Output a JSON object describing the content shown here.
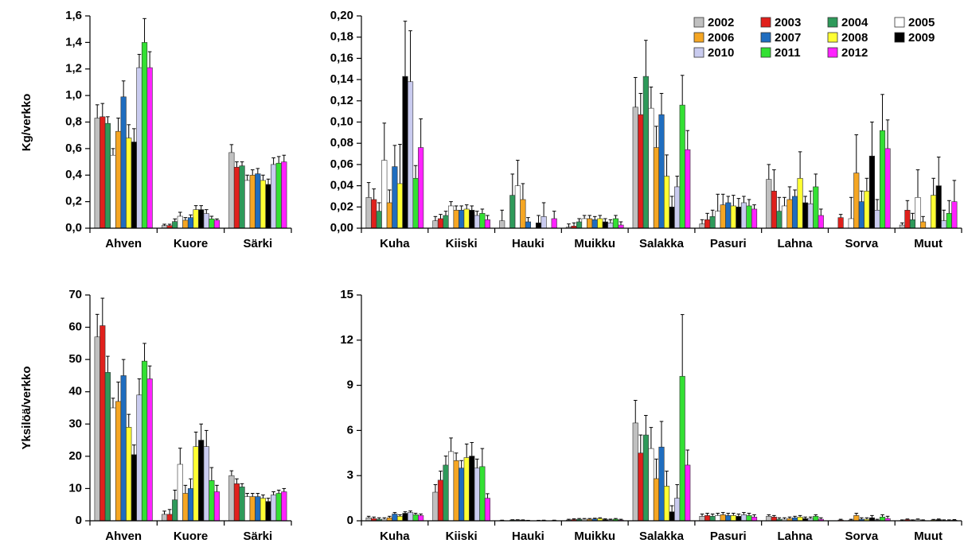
{
  "chart_data": [
    {
      "type": "bar",
      "ylabel": "Kg/verkko",
      "categories": [
        "Ahven",
        "Kuore",
        "Särki"
      ],
      "ylim": [
        0,
        1.6
      ],
      "yticks": [
        {
          "value": 0,
          "label": "0,0"
        },
        {
          "value": 0.2,
          "label": "0,2"
        },
        {
          "value": 0.4,
          "label": "0,4"
        },
        {
          "value": 0.6,
          "label": "0,6"
        },
        {
          "value": 0.8,
          "label": "0,8"
        },
        {
          "value": 1.0,
          "label": "1,0"
        },
        {
          "value": 1.2,
          "label": "1,2"
        },
        {
          "value": 1.4,
          "label": "1,4"
        },
        {
          "value": 1.6,
          "label": "1,6"
        }
      ],
      "series": [
        {
          "name": "2002",
          "color": "#c0c0c0",
          "values": [
            0.83,
            0.02,
            0.57
          ],
          "errors": [
            0.1,
            0.01,
            0.06
          ]
        },
        {
          "name": "2003",
          "color": "#e0201c",
          "values": [
            0.84,
            0.02,
            0.46
          ],
          "errors": [
            0.1,
            0.01,
            0.04
          ]
        },
        {
          "name": "2004",
          "color": "#2e9a5a",
          "values": [
            0.79,
            0.05,
            0.47
          ],
          "errors": [
            0.05,
            0.02,
            0.03
          ]
        },
        {
          "name": "2005",
          "color": "#ffffff",
          "values": [
            0.55,
            0.09,
            0.36
          ],
          "errors": [
            0.05,
            0.03,
            0.04
          ]
        },
        {
          "name": "2006",
          "color": "#f5a623",
          "values": [
            0.73,
            0.06,
            0.4
          ],
          "errors": [
            0.1,
            0.02,
            0.04
          ]
        },
        {
          "name": "2007",
          "color": "#1f6dbf",
          "values": [
            0.99,
            0.08,
            0.41
          ],
          "errors": [
            0.12,
            0.02,
            0.04
          ]
        },
        {
          "name": "2008",
          "color": "#ffff33",
          "values": [
            0.68,
            0.14,
            0.36
          ],
          "errors": [
            0.1,
            0.03,
            0.04
          ]
        },
        {
          "name": "2009",
          "color": "#000000",
          "values": [
            0.65,
            0.14,
            0.33
          ],
          "errors": [
            0.1,
            0.03,
            0.04
          ]
        },
        {
          "name": "2010",
          "color": "#c9cbef",
          "values": [
            1.21,
            0.11,
            0.48
          ],
          "errors": [
            0.1,
            0.03,
            0.05
          ]
        },
        {
          "name": "2011",
          "color": "#33e033",
          "values": [
            1.4,
            0.07,
            0.49
          ],
          "errors": [
            0.18,
            0.02,
            0.05
          ]
        },
        {
          "name": "2012",
          "color": "#ff22ff",
          "values": [
            1.21,
            0.06,
            0.5
          ],
          "errors": [
            0.12,
            0.01,
            0.05
          ]
        }
      ]
    },
    {
      "type": "bar",
      "legend": "upper right",
      "categories": [
        "Kuha",
        "Kiiski",
        "Hauki",
        "Muikku",
        "Salakka",
        "Pasuri",
        "Lahna",
        "Sorva",
        "Muut"
      ],
      "ylim": [
        0,
        0.2
      ],
      "yticks": [
        {
          "value": 0,
          "label": "0,00"
        },
        {
          "value": 0.02,
          "label": "0,02"
        },
        {
          "value": 0.04,
          "label": "0,04"
        },
        {
          "value": 0.06,
          "label": "0,06"
        },
        {
          "value": 0.08,
          "label": "0,08"
        },
        {
          "value": 0.1,
          "label": "0,10"
        },
        {
          "value": 0.12,
          "label": "0,12"
        },
        {
          "value": 0.14,
          "label": "0,14"
        },
        {
          "value": 0.16,
          "label": "0,16"
        },
        {
          "value": 0.18,
          "label": "0,18"
        },
        {
          "value": 0.2,
          "label": "0,20"
        }
      ],
      "series": [
        {
          "name": "2002",
          "color": "#c0c0c0",
          "values": [
            0.029,
            0.007,
            0.007,
            0.001,
            0.114,
            0.004,
            0.046,
            0,
            0.003
          ],
          "errors": [
            0.014,
            0.004,
            0.01,
            0.003,
            0.028,
            0.004,
            0.014,
            0,
            0.002
          ]
        },
        {
          "name": "2003",
          "color": "#e0201c",
          "values": [
            0.027,
            0.009,
            0,
            0.002,
            0.107,
            0.008,
            0.035,
            0.01,
            0.017
          ],
          "errors": [
            0.01,
            0.004,
            0,
            0.003,
            0.02,
            0.006,
            0.02,
            0.003,
            0.009
          ]
        },
        {
          "name": "2004",
          "color": "#2e9a5a",
          "values": [
            0.016,
            0.012,
            0.031,
            0.006,
            0.143,
            0.011,
            0.016,
            0,
            0.008
          ],
          "errors": [
            0.008,
            0.004,
            0.02,
            0.003,
            0.034,
            0.006,
            0.013,
            0,
            0.006
          ]
        },
        {
          "name": "2005",
          "color": "#ffffff",
          "values": [
            0.064,
            0.021,
            0.04,
            0.009,
            0.113,
            0.016,
            0.021,
            0.009,
            0.029
          ],
          "errors": [
            0.035,
            0.004,
            0.024,
            0.003,
            0.02,
            0.016,
            0.008,
            0.02,
            0.026
          ]
        },
        {
          "name": "2006",
          "color": "#f5a623",
          "values": [
            0.024,
            0.017,
            0.027,
            0.009,
            0.076,
            0.022,
            0.027,
            0.052,
            0.006
          ],
          "errors": [
            0.012,
            0.004,
            0.015,
            0.003,
            0.02,
            0.01,
            0.012,
            0.036,
            0.005
          ]
        },
        {
          "name": "2007",
          "color": "#1f6dbf",
          "values": [
            0.058,
            0.017,
            0.006,
            0.008,
            0.107,
            0.024,
            0.03,
            0.025,
            0
          ],
          "errors": [
            0.02,
            0.004,
            0.004,
            0.003,
            0.02,
            0.006,
            0.006,
            0.01,
            0
          ]
        },
        {
          "name": "2008",
          "color": "#ffff33",
          "values": [
            0.042,
            0.018,
            0,
            0.009,
            0.049,
            0.021,
            0.047,
            0.035,
            0.031
          ],
          "errors": [
            0.037,
            0.004,
            0,
            0.003,
            0.02,
            0.01,
            0.025,
            0.012,
            0.016
          ]
        },
        {
          "name": "2009",
          "color": "#000000",
          "values": [
            0.143,
            0.017,
            0.005,
            0.006,
            0.02,
            0.02,
            0.024,
            0.068,
            0.04
          ],
          "errors": [
            0.052,
            0.004,
            0.007,
            0.003,
            0.01,
            0.008,
            0.006,
            0.032,
            0.027
          ]
        },
        {
          "name": "2010",
          "color": "#c9cbef",
          "values": [
            0.138,
            0.012,
            0.011,
            0.005,
            0.039,
            0.024,
            0.023,
            0.017,
            0.007
          ],
          "errors": [
            0.048,
            0.004,
            0.013,
            0.003,
            0.01,
            0.006,
            0.012,
            0.01,
            0.01
          ]
        },
        {
          "name": "2011",
          "color": "#33e033",
          "values": [
            0.047,
            0.014,
            0,
            0.009,
            0.116,
            0.021,
            0.039,
            0.092,
            0.014
          ],
          "errors": [
            0.012,
            0.004,
            0,
            0.003,
            0.028,
            0.006,
            0.012,
            0.034,
            0.012
          ]
        },
        {
          "name": "2012",
          "color": "#ff22ff",
          "values": [
            0.076,
            0.008,
            0.009,
            0.003,
            0.074,
            0.018,
            0.012,
            0.075,
            0.025
          ],
          "errors": [
            0.027,
            0.004,
            0.007,
            0.003,
            0.018,
            0.004,
            0.006,
            0.027,
            0.02
          ]
        }
      ]
    },
    {
      "type": "bar",
      "ylabel": "Yksilöä/verkko",
      "categories": [
        "Ahven",
        "Kuore",
        "Särki"
      ],
      "ylim": [
        0,
        70
      ],
      "yticks": [
        0,
        10,
        20,
        30,
        40,
        50,
        60,
        70
      ],
      "series": [
        {
          "name": "2002",
          "color": "#c0c0c0",
          "values": [
            57,
            2,
            14
          ],
          "errors": [
            7,
            1,
            1.5
          ]
        },
        {
          "name": "2003",
          "color": "#e0201c",
          "values": [
            60.5,
            2,
            11.5
          ],
          "errors": [
            8.5,
            1.5,
            1.5
          ]
        },
        {
          "name": "2004",
          "color": "#2e9a5a",
          "values": [
            46,
            6.5,
            10.5
          ],
          "errors": [
            5,
            3,
            1
          ]
        },
        {
          "name": "2005",
          "color": "#ffffff",
          "values": [
            35,
            17.5,
            7.5
          ],
          "errors": [
            3,
            5,
            1
          ]
        },
        {
          "name": "2006",
          "color": "#f5a623",
          "values": [
            37,
            8.5,
            7.5
          ],
          "errors": [
            6,
            2.5,
            1
          ]
        },
        {
          "name": "2007",
          "color": "#1f6dbf",
          "values": [
            45,
            10,
            7.5
          ],
          "errors": [
            5,
            3,
            1
          ]
        },
        {
          "name": "2008",
          "color": "#ffff33",
          "values": [
            29,
            23,
            7
          ],
          "errors": [
            4,
            4.5,
            1
          ]
        },
        {
          "name": "2009",
          "color": "#000000",
          "values": [
            20.5,
            25,
            6
          ],
          "errors": [
            3,
            5,
            1
          ]
        },
        {
          "name": "2010",
          "color": "#c9cbef",
          "values": [
            39,
            23,
            8
          ],
          "errors": [
            5,
            5,
            1
          ]
        },
        {
          "name": "2011",
          "color": "#33e033",
          "values": [
            49.5,
            12.5,
            8.5
          ],
          "errors": [
            5.5,
            4,
            1
          ]
        },
        {
          "name": "2012",
          "color": "#ff22ff",
          "values": [
            44,
            9,
            9
          ],
          "errors": [
            4,
            2,
            1
          ]
        }
      ]
    },
    {
      "type": "bar",
      "categories": [
        "Kuha",
        "Kiiski",
        "Hauki",
        "Muikku",
        "Salakka",
        "Pasuri",
        "Lahna",
        "Sorva",
        "Muut"
      ],
      "ylim": [
        0,
        15
      ],
      "yticks": [
        0,
        3,
        6,
        9,
        12,
        15
      ],
      "series": [
        {
          "name": "2002",
          "color": "#c0c0c0",
          "values": [
            0.2,
            1.9,
            0.02,
            0.05,
            6.5,
            0.3,
            0.3,
            0,
            0.02
          ],
          "errors": [
            0.1,
            0.5,
            0.02,
            0.05,
            1.5,
            0.15,
            0.1,
            0,
            0.04
          ]
        },
        {
          "name": "2003",
          "color": "#e0201c",
          "values": [
            0.15,
            2.7,
            0,
            0.08,
            4.5,
            0.35,
            0.25,
            0.05,
            0.08
          ],
          "errors": [
            0.1,
            0.6,
            0,
            0.05,
            1.2,
            0.15,
            0.1,
            0.05,
            0.04
          ]
        },
        {
          "name": "2004",
          "color": "#2e9a5a",
          "values": [
            0.1,
            3.7,
            0.05,
            0.1,
            5.7,
            0.3,
            0.1,
            0,
            0.02
          ],
          "errors": [
            0.1,
            0.6,
            0.02,
            0.05,
            1.3,
            0.15,
            0.1,
            0,
            0.04
          ]
        },
        {
          "name": "2005",
          "color": "#ffffff",
          "values": [
            0.1,
            4.6,
            0.05,
            0.1,
            4.8,
            0.35,
            0.1,
            0.05,
            0.08
          ],
          "errors": [
            0.1,
            0.9,
            0.02,
            0.05,
            1.4,
            0.15,
            0.1,
            0.05,
            0.04
          ]
        },
        {
          "name": "2006",
          "color": "#f5a623",
          "values": [
            0.2,
            4.0,
            0.04,
            0.1,
            2.8,
            0.4,
            0.15,
            0.35,
            0.02
          ],
          "errors": [
            0.1,
            0.5,
            0.02,
            0.05,
            1.3,
            0.15,
            0.1,
            0.15,
            0.04
          ]
        },
        {
          "name": "2007",
          "color": "#1f6dbf",
          "values": [
            0.45,
            3.5,
            0.01,
            0.12,
            4.9,
            0.35,
            0.2,
            0.1,
            0
          ],
          "errors": [
            0.1,
            0.5,
            0.02,
            0.05,
            1.7,
            0.15,
            0.1,
            0.1,
            0
          ]
        },
        {
          "name": "2008",
          "color": "#ffff33",
          "values": [
            0.3,
            4.2,
            0,
            0.15,
            2.3,
            0.35,
            0.25,
            0.1,
            0.05
          ],
          "errors": [
            0.1,
            0.9,
            0,
            0.05,
            1.0,
            0.15,
            0.1,
            0.1,
            0.04
          ]
        },
        {
          "name": "2009",
          "color": "#000000",
          "values": [
            0.5,
            4.3,
            0.01,
            0.08,
            0.6,
            0.3,
            0.15,
            0.2,
            0.08
          ],
          "errors": [
            0.1,
            0.9,
            0.02,
            0.05,
            0.4,
            0.15,
            0.1,
            0.15,
            0.04
          ]
        },
        {
          "name": "2010",
          "color": "#c9cbef",
          "values": [
            0.55,
            3.5,
            0.02,
            0.06,
            1.5,
            0.4,
            0.15,
            0.05,
            0.02
          ],
          "errors": [
            0.1,
            0.6,
            0.02,
            0.05,
            0.9,
            0.15,
            0.1,
            0.05,
            0.04
          ]
        },
        {
          "name": "2011",
          "color": "#33e033",
          "values": [
            0.4,
            3.6,
            0,
            0.1,
            9.6,
            0.35,
            0.3,
            0.25,
            0.02
          ],
          "errors": [
            0.1,
            1.2,
            0,
            0.05,
            4.1,
            0.15,
            0.1,
            0.15,
            0.04
          ]
        },
        {
          "name": "2012",
          "color": "#ff22ff",
          "values": [
            0.35,
            1.5,
            0.02,
            0.05,
            3.7,
            0.25,
            0.1,
            0.15,
            0.04
          ],
          "errors": [
            0.1,
            0.3,
            0.02,
            0.05,
            1.0,
            0.15,
            0.1,
            0.15,
            0.04
          ]
        }
      ]
    }
  ]
}
